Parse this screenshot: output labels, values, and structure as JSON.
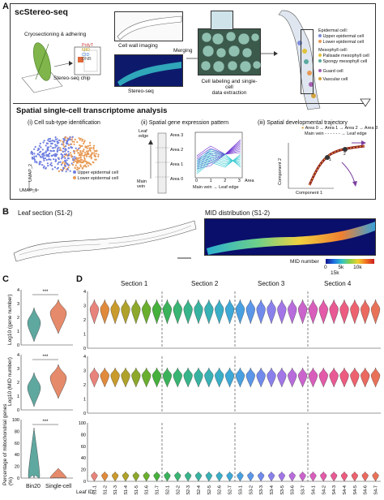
{
  "panel_a": {
    "letter": "A",
    "title": "scStereo-seq",
    "step1": "Cryosectioning & adhering",
    "chip_label": "Stereo-seq chip",
    "chip_tags": [
      "PolyT",
      "MID",
      "CID",
      "DNB"
    ],
    "wall_label": "Cell wall imaging",
    "stereo_label": "Stereo-seq",
    "merge_label": "Merging",
    "extract_label": "Cell labeling and single-cell\ndata extraction",
    "legend_epidermal_title": "Epidermal cell:",
    "legend_epidermal": [
      {
        "label": "Upper epidermal cell",
        "color": "#7d8bd8"
      },
      {
        "label": "Lower epidermal cell",
        "color": "#e89a55"
      }
    ],
    "legend_meso_title": "Mesophyll cell:",
    "legend_meso": [
      {
        "label": "Palisade mesophyll cell",
        "color": "#e0c23a"
      },
      {
        "label": "Spongy mesophyll cell",
        "color": "#5aa8a0"
      }
    ],
    "legend_other": [
      {
        "label": "Guard cell",
        "color": "#a45fb0"
      },
      {
        "label": "Vascular cell",
        "color": "#d4a23c"
      }
    ],
    "sub_title": "Spatial single-cell transcriptome analysis",
    "sub_i": "(i) Cell sub-type identification",
    "sub_ii": "(ii) Spatial gene expression pattern",
    "sub_iii": "(iii) Spatial developmental trajectory",
    "umap1": "UMAP_1",
    "umap2": "UMAP_2",
    "umap_legend": [
      {
        "label": "Upper epidermal cell",
        "color": "#6f7fe0"
      },
      {
        "label": "Lower epidermal cell",
        "color": "#e89a55"
      }
    ],
    "leaf_edge": "Leaf\nedge",
    "main_vein": "Main\nvein",
    "areas": [
      "Area 3",
      "Area 2",
      "Area 1",
      "Area 0"
    ],
    "area_axis": [
      "0",
      "1",
      "2",
      "3"
    ],
    "area_axis_label": "Area",
    "main_vein_to_edge": "Main vein → Leaf edge",
    "traj_legend_1": "Area 0 → Area 1 → Area 2 → Area 3",
    "traj_legend_2": "Main vein - - - - - - → Leaf edge",
    "comp1": "Component 1",
    "comp2": "Component 2"
  },
  "panel_b": {
    "letter": "B",
    "left_title": "Leaf section (S1-2)",
    "right_title": "MID distribution (S1-2)",
    "colorbar_title": "MID number",
    "colorbar_ticks": [
      "0",
      "5k",
      "10k",
      "15k"
    ]
  },
  "panel_c": {
    "letter": "C",
    "y1": "Log10 (gene number)",
    "y2": "Log10 (MID number)",
    "y3": "Percentage of mitochondrial genes (%)",
    "y1_ticks": [
      "4",
      "3",
      "2",
      "1",
      "0"
    ],
    "y3_ticks": [
      "100",
      "80",
      "60",
      "40",
      "20",
      "0"
    ],
    "signif": "***",
    "groups": [
      "Bin20",
      "Single-cell"
    ],
    "group_colors": [
      "#5fa8a0",
      "#e58a6a"
    ]
  },
  "panel_d": {
    "letter": "D",
    "sections": [
      "Section 1",
      "Section 2",
      "Section 3",
      "Section 4"
    ],
    "leaf_id_label": "Leaf ID:",
    "leaf_ids": [
      "S1-1",
      "S1-2",
      "S1-3",
      "S1-4",
      "S1-5",
      "S1-6",
      "S1-7",
      "S2-1",
      "S2-2",
      "S2-3",
      "S2-4",
      "S2-5",
      "S2-6",
      "S2-7",
      "S3-1",
      "S3-2",
      "S3-3",
      "S3-4",
      "S3-5",
      "S3-6",
      "S3-7",
      "S4-1",
      "S4-2",
      "S4-3",
      "S4-4",
      "S4-5",
      "S4-6",
      "S4-7"
    ],
    "violin_colors": [
      "#e8837b",
      "#e08a3c",
      "#c99a2c",
      "#b0a12a",
      "#8da82a",
      "#6aae2e",
      "#46b03c",
      "#3bb25a",
      "#3ab472",
      "#38b48a",
      "#38b2a0",
      "#38b0b4",
      "#3aaec6",
      "#3ea8d6",
      "#49a0e0",
      "#5b96e8",
      "#718aec",
      "#8a80ec",
      "#a276e6",
      "#b86cdc",
      "#ca64cc",
      "#d85ebc",
      "#e25aa8",
      "#e85a94",
      "#ec5c80",
      "#ec626e",
      "#ea6a60",
      "#e87258"
    ],
    "y_ticks_top": [
      "4",
      "3",
      "2",
      "1",
      "0"
    ],
    "y_ticks_bottom": [
      "100",
      "80",
      "60",
      "40",
      "20",
      "0"
    ]
  }
}
